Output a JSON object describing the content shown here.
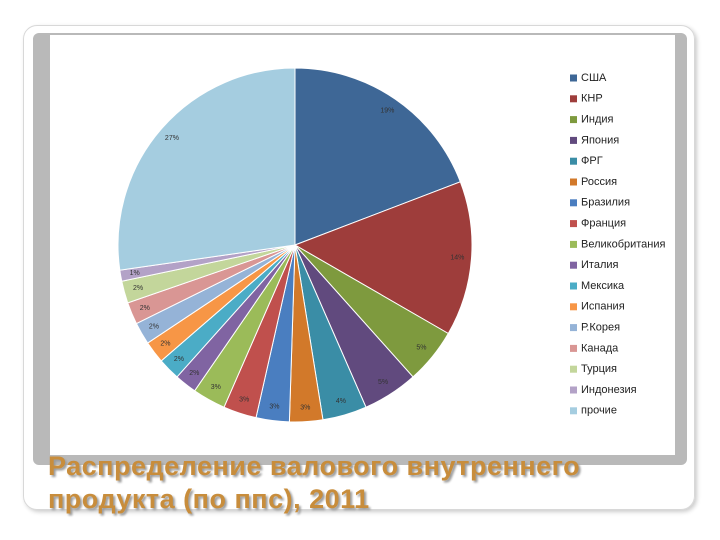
{
  "chart_data": {
    "type": "pie",
    "title": "Распределение валового внутреннего продукта (по ппс), 2011",
    "categories": [
      "США",
      "КНР",
      "Индия",
      "Япония",
      "ФРГ",
      "Россия",
      "Бразилия",
      "Франция",
      "Великобритания",
      "Италия",
      "Мексика",
      "Испания",
      "Р.Корея",
      "Канада",
      "Турция",
      "Индонезия",
      "прочие"
    ],
    "values": [
      19,
      14,
      5,
      5,
      4,
      3,
      3,
      3,
      3,
      2,
      2,
      2,
      2,
      2,
      2,
      1,
      27
    ],
    "value_labels": [
      "19%",
      "14%",
      "5%",
      "5%",
      "4%",
      "3%",
      "3%",
      "3%",
      "3%",
      "2%",
      "2%",
      "2%",
      "2%",
      "2%",
      "2%",
      "1%",
      "27%"
    ],
    "colors": [
      "#3e6796",
      "#9e3d3b",
      "#7e9a3e",
      "#614a7e",
      "#3a8da6",
      "#d2792a",
      "#4a7ec0",
      "#c0504d",
      "#9bbb59",
      "#8064a2",
      "#4bacc6",
      "#f79646",
      "#95b3d7",
      "#d99694",
      "#c3d69b",
      "#b3a2c7",
      "#a5cde0"
    ],
    "legend": "right"
  }
}
